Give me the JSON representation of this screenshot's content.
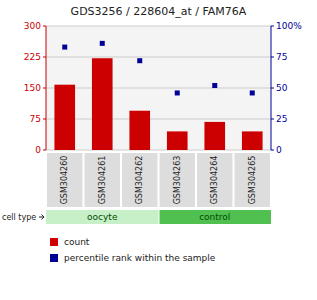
{
  "chart_data": {
    "type": "bar",
    "title": "GDS3256 / 228604_at / FAM76A",
    "categories": [
      "GSM304260",
      "GSM304261",
      "GSM304262",
      "GSM304263",
      "GSM304264",
      "GSM304265"
    ],
    "series": [
      {
        "name": "count",
        "type": "bar",
        "color": "#cc0000",
        "values": [
          158,
          222,
          95,
          45,
          68,
          45
        ]
      },
      {
        "name": "percentile rank within the sample",
        "type": "scatter",
        "marker": "square",
        "axis": "y2",
        "color": "#000099",
        "values": [
          83,
          86,
          72,
          46,
          52,
          46
        ]
      }
    ],
    "ylim": [
      0,
      300
    ],
    "yticks": [
      0,
      75,
      150,
      225,
      300
    ],
    "y2lim": [
      0,
      100
    ],
    "y2ticks": [
      0,
      25,
      50,
      75,
      {
        "value": 100,
        "label": "100%"
      }
    ],
    "grid": true,
    "groups": [
      "oocyte",
      "oocyte",
      "oocyte",
      "control",
      "control",
      "control"
    ],
    "group_colors": {
      "oocyte": "#c8f0c8",
      "control": "#50c050"
    },
    "group_label": "cell type"
  }
}
